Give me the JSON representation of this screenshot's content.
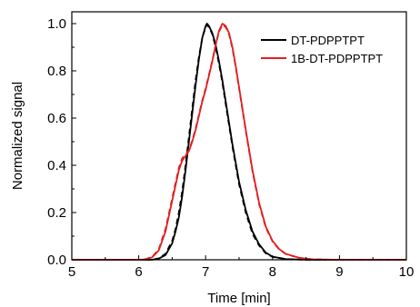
{
  "chart_data": {
    "type": "line",
    "title": "",
    "xlabel": "Time [min]",
    "ylabel": "Normalized signal",
    "xlim": [
      5,
      10
    ],
    "ylim": [
      0.0,
      1.05
    ],
    "grid": false,
    "legend_position": "top-right",
    "x_ticks": [
      "5",
      "6",
      "7",
      "8",
      "9",
      "10"
    ],
    "y_ticks": [
      "0.0",
      "0.2",
      "0.4",
      "0.6",
      "0.8",
      "1.0"
    ],
    "series": [
      {
        "name": "DT-PDPPTPT",
        "color": "#000000",
        "style": "solid",
        "legend": true,
        "points": [
          [
            5.0,
            0
          ],
          [
            6.0,
            0
          ],
          [
            6.2,
            0
          ],
          [
            6.3,
            0.005
          ],
          [
            6.4,
            0.02
          ],
          [
            6.5,
            0.07
          ],
          [
            6.55,
            0.12
          ],
          [
            6.6,
            0.18
          ],
          [
            6.65,
            0.27
          ],
          [
            6.7,
            0.38
          ],
          [
            6.75,
            0.5
          ],
          [
            6.8,
            0.62
          ],
          [
            6.85,
            0.74
          ],
          [
            6.9,
            0.85
          ],
          [
            6.95,
            0.94
          ],
          [
            7.0,
            0.99
          ],
          [
            7.02,
            1.0
          ],
          [
            7.05,
            0.99
          ],
          [
            7.1,
            0.96
          ],
          [
            7.15,
            0.91
          ],
          [
            7.2,
            0.84
          ],
          [
            7.25,
            0.76
          ],
          [
            7.3,
            0.67
          ],
          [
            7.35,
            0.58
          ],
          [
            7.4,
            0.49
          ],
          [
            7.45,
            0.41
          ],
          [
            7.5,
            0.33
          ],
          [
            7.6,
            0.21
          ],
          [
            7.7,
            0.12
          ],
          [
            7.8,
            0.065
          ],
          [
            7.9,
            0.03
          ],
          [
            8.0,
            0.013
          ],
          [
            8.2,
            0.003
          ],
          [
            8.5,
            0
          ],
          [
            10.0,
            0
          ]
        ]
      },
      {
        "name": "DT-PDPPTPT",
        "color": "#000000",
        "style": "dashed",
        "legend": false,
        "points": [
          [
            5.0,
            0
          ],
          [
            6.0,
            0
          ],
          [
            6.2,
            0
          ],
          [
            6.3,
            0.006
          ],
          [
            6.4,
            0.025
          ],
          [
            6.5,
            0.08
          ],
          [
            6.55,
            0.13
          ],
          [
            6.6,
            0.2
          ],
          [
            6.65,
            0.29
          ],
          [
            6.7,
            0.4
          ],
          [
            6.75,
            0.52
          ],
          [
            6.8,
            0.64
          ],
          [
            6.85,
            0.76
          ],
          [
            6.9,
            0.86
          ],
          [
            6.95,
            0.94
          ],
          [
            7.0,
            0.985
          ],
          [
            7.02,
            0.995
          ],
          [
            7.05,
            0.985
          ],
          [
            7.1,
            0.955
          ],
          [
            7.15,
            0.9
          ],
          [
            7.2,
            0.83
          ],
          [
            7.25,
            0.75
          ],
          [
            7.3,
            0.66
          ],
          [
            7.35,
            0.57
          ],
          [
            7.4,
            0.48
          ],
          [
            7.45,
            0.4
          ],
          [
            7.5,
            0.32
          ],
          [
            7.6,
            0.2
          ],
          [
            7.7,
            0.11
          ],
          [
            7.8,
            0.06
          ],
          [
            7.9,
            0.027
          ],
          [
            8.0,
            0.012
          ],
          [
            8.2,
            0.003
          ],
          [
            8.5,
            0
          ],
          [
            10.0,
            0
          ]
        ]
      },
      {
        "name": "1B-DT-PDPPTPT",
        "color": "#e02020",
        "style": "solid",
        "legend": true,
        "points": [
          [
            5.0,
            0
          ],
          [
            6.0,
            0
          ],
          [
            6.1,
            0.002
          ],
          [
            6.2,
            0.01
          ],
          [
            6.3,
            0.04
          ],
          [
            6.4,
            0.12
          ],
          [
            6.5,
            0.25
          ],
          [
            6.6,
            0.38
          ],
          [
            6.65,
            0.42
          ],
          [
            6.7,
            0.44
          ],
          [
            6.75,
            0.46
          ],
          [
            6.8,
            0.5
          ],
          [
            6.85,
            0.55
          ],
          [
            6.9,
            0.61
          ],
          [
            6.95,
            0.67
          ],
          [
            7.0,
            0.72
          ],
          [
            7.05,
            0.78
          ],
          [
            7.1,
            0.84
          ],
          [
            7.15,
            0.91
          ],
          [
            7.2,
            0.97
          ],
          [
            7.25,
            1.0
          ],
          [
            7.3,
            0.99
          ],
          [
            7.35,
            0.96
          ],
          [
            7.4,
            0.9
          ],
          [
            7.45,
            0.82
          ],
          [
            7.5,
            0.73
          ],
          [
            7.6,
            0.55
          ],
          [
            7.7,
            0.38
          ],
          [
            7.8,
            0.24
          ],
          [
            7.9,
            0.14
          ],
          [
            8.0,
            0.08
          ],
          [
            8.1,
            0.045
          ],
          [
            8.2,
            0.025
          ],
          [
            8.4,
            0.008
          ],
          [
            8.6,
            0.002
          ],
          [
            9.0,
            0
          ],
          [
            10.0,
            0
          ]
        ]
      },
      {
        "name": "1B-DT-PDPPTPT",
        "color": "#e02020",
        "style": "dashed",
        "legend": false,
        "points": [
          [
            5.0,
            0
          ],
          [
            6.0,
            0
          ],
          [
            6.1,
            0.003
          ],
          [
            6.2,
            0.012
          ],
          [
            6.3,
            0.045
          ],
          [
            6.4,
            0.13
          ],
          [
            6.5,
            0.26
          ],
          [
            6.6,
            0.39
          ],
          [
            6.65,
            0.43
          ],
          [
            6.7,
            0.445
          ],
          [
            6.75,
            0.465
          ],
          [
            6.8,
            0.505
          ],
          [
            6.85,
            0.555
          ],
          [
            6.9,
            0.615
          ],
          [
            6.95,
            0.675
          ],
          [
            7.0,
            0.725
          ],
          [
            7.05,
            0.785
          ],
          [
            7.1,
            0.845
          ],
          [
            7.15,
            0.91
          ],
          [
            7.2,
            0.965
          ],
          [
            7.25,
            0.995
          ],
          [
            7.3,
            0.985
          ],
          [
            7.35,
            0.955
          ],
          [
            7.4,
            0.895
          ],
          [
            7.45,
            0.815
          ],
          [
            7.5,
            0.725
          ],
          [
            7.6,
            0.545
          ],
          [
            7.7,
            0.375
          ],
          [
            7.8,
            0.235
          ],
          [
            7.9,
            0.135
          ],
          [
            8.0,
            0.078
          ],
          [
            8.1,
            0.043
          ],
          [
            8.2,
            0.024
          ],
          [
            8.4,
            0.008
          ],
          [
            8.6,
            0.002
          ],
          [
            9.0,
            0
          ],
          [
            10.0,
            0
          ]
        ]
      }
    ]
  }
}
